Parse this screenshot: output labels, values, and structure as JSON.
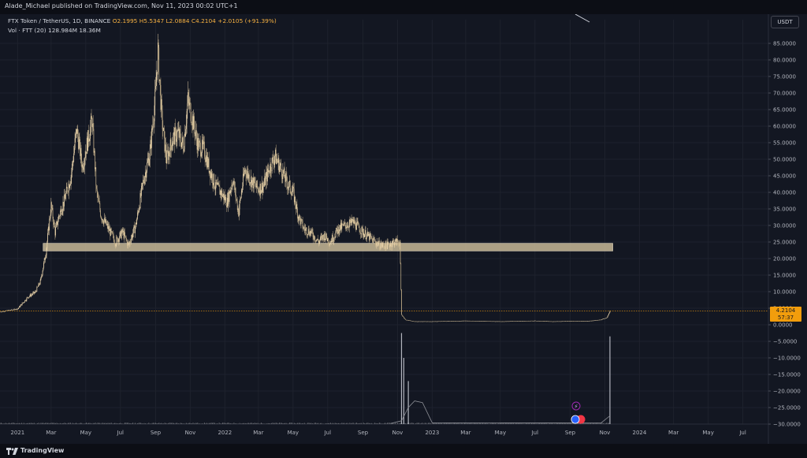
{
  "header": {
    "publisher": "Alade_Michael published on TradingView.com, Nov 11, 2023 00:02 UTC+1"
  },
  "legend": {
    "symbol": "FTX Token / TetherUS, 1D, BINANCE",
    "open": "O2.1995",
    "high": "H5.5347",
    "low": "L2.0884",
    "close": "C4.2104",
    "change": "+2.0105 (+91.39%)",
    "volume_label": "Vol · FTT (20)",
    "volume_value": "128.984M",
    "volume_ma": "18.36M"
  },
  "currency_button": "USDT",
  "price_tag": {
    "price": "4.2104",
    "countdown": "57:37"
  },
  "footer": {
    "brand": "TradingView"
  },
  "colors": {
    "background": "#131722",
    "candle": "#f5deb3",
    "support_zone": "#c8b996",
    "price_tag": "#f29d0c",
    "volume": "#8d8f96"
  },
  "chart_data": {
    "type": "candlestick",
    "y_axis": {
      "min": -30,
      "max": 85,
      "ticks": [
        {
          "value": 85,
          "label": "85.0000"
        },
        {
          "value": 80,
          "label": "80.0000"
        },
        {
          "value": 75,
          "label": "75.0000"
        },
        {
          "value": 70,
          "label": "70.0000"
        },
        {
          "value": 65,
          "label": "65.0000"
        },
        {
          "value": 60,
          "label": "60.0000"
        },
        {
          "value": 55,
          "label": "55.0000"
        },
        {
          "value": 50,
          "label": "50.0000"
        },
        {
          "value": 45,
          "label": "45.0000"
        },
        {
          "value": 40,
          "label": "40.0000"
        },
        {
          "value": 35,
          "label": "35.0000"
        },
        {
          "value": 30,
          "label": "30.0000"
        },
        {
          "value": 25,
          "label": "25.0000"
        },
        {
          "value": 20,
          "label": "20.0000"
        },
        {
          "value": 15,
          "label": "15.0000"
        },
        {
          "value": 10,
          "label": "10.0000"
        },
        {
          "value": 5,
          "label": "5.0000"
        },
        {
          "value": 0,
          "label": "0.0000"
        },
        {
          "value": -5,
          "label": "−5.0000"
        },
        {
          "value": -10,
          "label": "−10.0000"
        },
        {
          "value": -15,
          "label": "−15.0000"
        },
        {
          "value": -20,
          "label": "−20.0000"
        },
        {
          "value": -25,
          "label": "−25.0000"
        },
        {
          "value": -30,
          "label": "−30.0000"
        }
      ]
    },
    "x_axis": {
      "start": "2020-12-01",
      "end": "2024-08-15",
      "ticks": [
        {
          "date": "2021-01-01",
          "label": "2021"
        },
        {
          "date": "2021-03-01",
          "label": "Mar"
        },
        {
          "date": "2021-05-01",
          "label": "May"
        },
        {
          "date": "2021-07-01",
          "label": "Jul"
        },
        {
          "date": "2021-09-01",
          "label": "Sep"
        },
        {
          "date": "2021-11-01",
          "label": "Nov"
        },
        {
          "date": "2022-01-01",
          "label": "2022"
        },
        {
          "date": "2022-03-01",
          "label": "Mar"
        },
        {
          "date": "2022-05-01",
          "label": "May"
        },
        {
          "date": "2022-07-01",
          "label": "Jul"
        },
        {
          "date": "2022-09-01",
          "label": "Sep"
        },
        {
          "date": "2022-11-01",
          "label": "Nov"
        },
        {
          "date": "2023-01-01",
          "label": "2023"
        },
        {
          "date": "2023-03-01",
          "label": "Mar"
        },
        {
          "date": "2023-05-01",
          "label": "May"
        },
        {
          "date": "2023-07-01",
          "label": "Jul"
        },
        {
          "date": "2023-09-01",
          "label": "Sep"
        },
        {
          "date": "2023-11-01",
          "label": "Nov"
        },
        {
          "date": "2024-01-01",
          "label": "2024"
        },
        {
          "date": "2024-03-01",
          "label": "Mar"
        },
        {
          "date": "2024-05-01",
          "label": "May"
        },
        {
          "date": "2024-07-01",
          "label": "Jul"
        }
      ]
    },
    "price_path": [
      [
        "2020-12-01",
        3.9
      ],
      [
        "2021-01-01",
        4.8
      ],
      [
        "2021-01-20",
        8.5
      ],
      [
        "2021-02-01",
        9.8
      ],
      [
        "2021-02-10",
        13
      ],
      [
        "2021-02-20",
        22
      ],
      [
        "2021-03-01",
        36
      ],
      [
        "2021-03-08",
        28
      ],
      [
        "2021-03-15",
        33
      ],
      [
        "2021-03-25",
        38
      ],
      [
        "2021-04-05",
        45
      ],
      [
        "2021-04-15",
        59
      ],
      [
        "2021-04-25",
        48
      ],
      [
        "2021-05-05",
        56
      ],
      [
        "2021-05-12",
        62
      ],
      [
        "2021-05-20",
        40
      ],
      [
        "2021-05-28",
        33
      ],
      [
        "2021-06-10",
        29
      ],
      [
        "2021-06-22",
        25
      ],
      [
        "2021-07-05",
        28
      ],
      [
        "2021-07-15",
        24
      ],
      [
        "2021-07-28",
        30
      ],
      [
        "2021-08-10",
        43
      ],
      [
        "2021-08-22",
        52
      ],
      [
        "2021-09-01",
        70
      ],
      [
        "2021-09-05",
        83
      ],
      [
        "2021-09-12",
        62
      ],
      [
        "2021-09-20",
        50
      ],
      [
        "2021-10-01",
        56
      ],
      [
        "2021-10-10",
        58
      ],
      [
        "2021-10-20",
        54
      ],
      [
        "2021-10-28",
        68
      ],
      [
        "2021-11-05",
        62
      ],
      [
        "2021-11-15",
        54
      ],
      [
        "2021-11-25",
        53
      ],
      [
        "2021-12-05",
        47
      ],
      [
        "2021-12-15",
        42
      ],
      [
        "2021-12-25",
        40
      ],
      [
        "2022-01-05",
        37
      ],
      [
        "2022-01-15",
        44
      ],
      [
        "2022-01-25",
        34
      ],
      [
        "2022-02-05",
        47
      ],
      [
        "2022-02-15",
        44
      ],
      [
        "2022-02-28",
        41
      ],
      [
        "2022-03-10",
        42
      ],
      [
        "2022-03-20",
        47
      ],
      [
        "2022-03-30",
        51
      ],
      [
        "2022-04-10",
        47
      ],
      [
        "2022-04-20",
        43
      ],
      [
        "2022-05-01",
        40
      ],
      [
        "2022-05-10",
        33
      ],
      [
        "2022-05-20",
        29
      ],
      [
        "2022-06-01",
        28
      ],
      [
        "2022-06-15",
        25
      ],
      [
        "2022-06-25",
        27
      ],
      [
        "2022-07-05",
        25
      ],
      [
        "2022-07-20",
        29
      ],
      [
        "2022-08-01",
        30
      ],
      [
        "2022-08-15",
        31
      ],
      [
        "2022-09-01",
        28
      ],
      [
        "2022-09-15",
        26
      ],
      [
        "2022-10-01",
        24
      ],
      [
        "2022-10-15",
        24
      ],
      [
        "2022-10-25",
        25
      ],
      [
        "2022-11-05",
        25
      ],
      [
        "2022-11-08",
        3
      ],
      [
        "2022-11-15",
        1.5
      ],
      [
        "2022-12-01",
        1
      ],
      [
        "2023-01-01",
        1.0
      ],
      [
        "2023-02-01",
        1.1
      ],
      [
        "2023-03-01",
        1.2
      ],
      [
        "2023-04-01",
        1.1
      ],
      [
        "2023-05-01",
        1.0
      ],
      [
        "2023-06-01",
        1.1
      ],
      [
        "2023-07-01",
        1.2
      ],
      [
        "2023-08-01",
        1.0
      ],
      [
        "2023-09-01",
        1.1
      ],
      [
        "2023-10-01",
        1.1
      ],
      [
        "2023-10-25",
        1.5
      ],
      [
        "2023-11-05",
        2.2
      ],
      [
        "2023-11-10",
        4.2104
      ]
    ],
    "last_price": 4.2104,
    "support_zone": {
      "from": "2021-02-15",
      "to": "2023-11-15",
      "low": 22.3,
      "high": 24.6
    },
    "volume_spikes": [
      [
        "2022-11-08",
        -2.5
      ],
      [
        "2022-11-12",
        -10
      ],
      [
        "2022-11-20",
        -17
      ],
      [
        "2023-11-10",
        -3.5
      ]
    ],
    "volume_ma": [
      [
        "2022-10-20",
        -29.8
      ],
      [
        "2022-11-08",
        -29
      ],
      [
        "2022-11-20",
        -25
      ],
      [
        "2022-12-01",
        -23
      ],
      [
        "2022-12-15",
        -23.5
      ],
      [
        "2023-01-01",
        -29.6
      ],
      [
        "2023-10-25",
        -29.7
      ],
      [
        "2023-11-10",
        -27.5
      ]
    ],
    "legend_position": "top-left"
  }
}
